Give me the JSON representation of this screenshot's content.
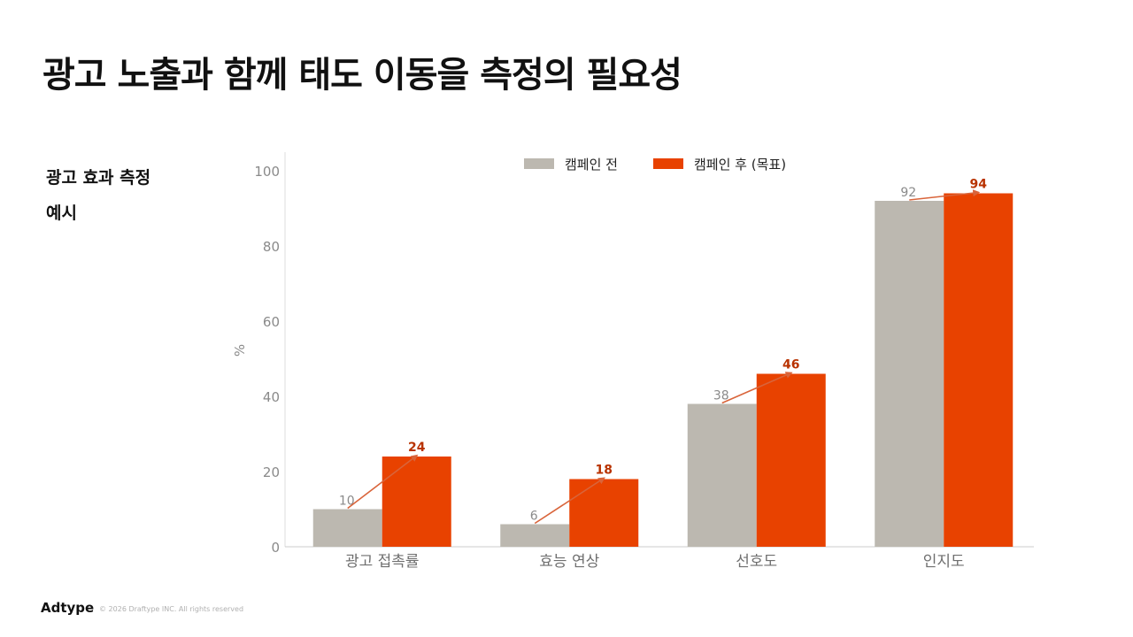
{
  "title": "광고 노출과 함께 태도 이동을 측정의 필요성",
  "side": {
    "line1": "광고 효과 측정",
    "line2": "예시"
  },
  "footer": {
    "logo": "Adtype",
    "copyright": "© 2026 Draftype INC. All rights reserved"
  },
  "colors": {
    "before": "#bcb8b0",
    "after": "#e84200",
    "arrow": "#d9643a",
    "after_label": "#b83200",
    "before_label": "#8a8a8a"
  },
  "chart_data": {
    "type": "bar",
    "categories": [
      "광고 접촉률",
      "효능 연상",
      "선호도",
      "인지도"
    ],
    "series": [
      {
        "name": "캠페인 전",
        "values": [
          10,
          6,
          38,
          92
        ]
      },
      {
        "name": "캠페인 후 (목표)",
        "values": [
          24,
          18,
          46,
          94
        ]
      }
    ],
    "ylabel": "%",
    "ylim": [
      0,
      100
    ],
    "yticks": [
      0,
      20,
      40,
      60,
      80,
      100
    ],
    "legend": "top-center",
    "grid": false
  }
}
